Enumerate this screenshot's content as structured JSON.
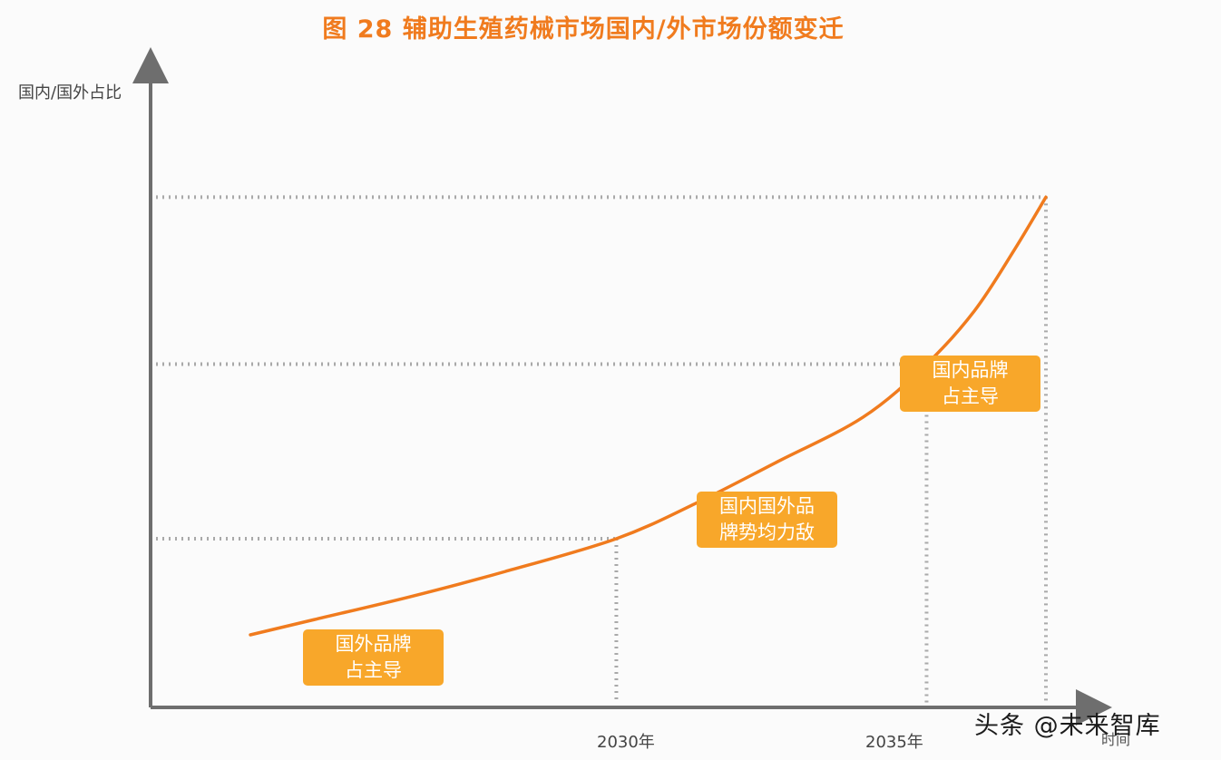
{
  "chart_data": {
    "type": "line",
    "title": "图 28 辅助生殖药械市场国内/外市场份额变迁",
    "ylabel": "国内/国外占比",
    "xlabel": "时间",
    "x_ticks": [
      "2030年",
      "2035年"
    ],
    "series": [
      {
        "color": "#f07b1e",
        "points": [
          [
            0.0,
            0.0
          ],
          [
            0.08,
            0.06
          ],
          [
            0.2,
            0.15
          ],
          [
            0.32,
            0.25
          ],
          [
            0.46,
            0.38
          ],
          [
            0.56,
            0.52
          ],
          [
            0.66,
            0.68
          ],
          [
            0.77,
            0.86
          ],
          [
            0.85,
            1.07
          ],
          [
            0.91,
            1.28
          ],
          [
            0.96,
            1.52
          ],
          [
            1.0,
            1.73
          ]
        ]
      }
    ],
    "reference_levels": {
      "x": [
        0.46,
        0.85,
        1.0
      ],
      "y": [
        0.38,
        1.07,
        1.73
      ]
    },
    "annotations": [
      {
        "lines": [
          "国外品牌",
          "占主导"
        ]
      },
      {
        "lines": [
          "国内国外品",
          "牌势均力敌"
        ]
      },
      {
        "lines": [
          "国内品牌",
          "占主导"
        ]
      }
    ],
    "grid": "dotted",
    "legend": "none"
  },
  "watermark": "头条 @未来智库",
  "colors": {
    "accent": "#f07b1e",
    "tag": "#f8a72a",
    "axis": "#6e6e6e"
  }
}
